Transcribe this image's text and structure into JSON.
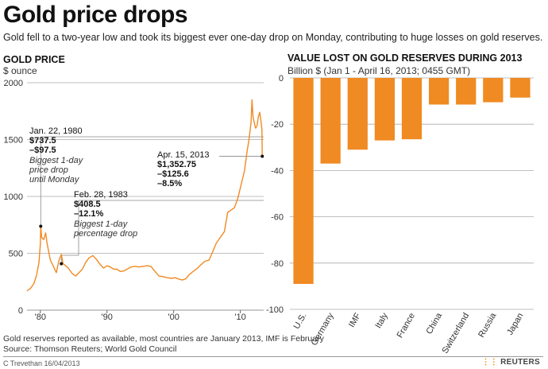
{
  "title": "Gold price drops",
  "subtitle": "Gold fell to a two-year low and took its biggest ever one-day drop on Monday, contributing to huge losses on gold reserves.",
  "footnote_1": "Gold reserves reported as available, most countries are January 2013, IMF is February",
  "footnote_2": "Source: Thomson Reuters; World Gold Council",
  "credit": "C Trevethan   16/04/2013",
  "brand": "REUTERS",
  "colors": {
    "series": "#f08a22",
    "grid": "#aaaaaa"
  },
  "chart_data": [
    {
      "type": "line",
      "title": "GOLD PRICE",
      "ylabel": "$ ounce",
      "ylim": [
        0,
        2000
      ],
      "yticks": [
        0,
        500,
        1000,
        1500,
        2000
      ],
      "xlim": [
        1978,
        2013.5
      ],
      "xticks": [
        1980,
        1990,
        2000,
        2010
      ],
      "xtick_labels": [
        "'80",
        "'90",
        "'00",
        "'10"
      ],
      "grid": "horizontal",
      "series": [
        {
          "x": [
            1978.0,
            1978.5,
            1979.0,
            1979.4,
            1979.8,
            1980.0,
            1980.06,
            1980.2,
            1980.5,
            1980.8,
            1981.0,
            1981.5,
            1982.0,
            1982.4,
            1982.8,
            1983.15,
            1983.4,
            1983.8,
            1984.2,
            1984.8,
            1985.3,
            1985.8,
            1986.3,
            1986.8,
            1987.3,
            1987.9,
            1988.5,
            1989.0,
            1989.5,
            1990.0,
            1990.5,
            1991.0,
            1991.5,
            1992.0,
            1992.5,
            1993.0,
            1993.6,
            1994.2,
            1994.8,
            1995.4,
            1996.0,
            1996.6,
            1997.2,
            1997.8,
            1998.4,
            1999.0,
            1999.7,
            2000.2,
            2000.8,
            2001.3,
            2001.8,
            2002.3,
            2002.9,
            2003.5,
            2004.1,
            2004.7,
            2005.3,
            2005.9,
            2006.4,
            2007.0,
            2007.6,
            2008.1,
            2008.6,
            2009.1,
            2009.6,
            2010.1,
            2010.6,
            2011.0,
            2011.3,
            2011.6,
            2011.75,
            2011.9,
            2012.1,
            2012.3,
            2012.5,
            2012.7,
            2012.9,
            2013.1,
            2013.24,
            2013.29
          ],
          "y": [
            170,
            190,
            230,
            300,
            420,
            580,
            737.5,
            640,
            620,
            680,
            590,
            440,
            380,
            330,
            440,
            490,
            408.5,
            390,
            370,
            320,
            300,
            330,
            360,
            420,
            460,
            480,
            440,
            400,
            370,
            390,
            380,
            360,
            360,
            340,
            345,
            360,
            380,
            385,
            380,
            385,
            390,
            385,
            340,
            300,
            295,
            285,
            280,
            285,
            272,
            265,
            275,
            310,
            340,
            365,
            400,
            430,
            440,
            520,
            590,
            640,
            690,
            860,
            880,
            900,
            980,
            1100,
            1220,
            1390,
            1500,
            1650,
            1850,
            1700,
            1650,
            1600,
            1620,
            1700,
            1740,
            1660,
            1590,
            1352.75
          ]
        }
      ],
      "annotations": [
        {
          "date": "Jan. 22, 1980",
          "value": "$737.5",
          "change": "–$97.5",
          "note": [
            "Biggest 1-day",
            "price drop",
            "until Monday"
          ]
        },
        {
          "date": "Feb. 28, 1983",
          "value": "$408.5",
          "change": "–12.1%",
          "note": [
            "Biggest 1-day",
            "percentage drop"
          ]
        },
        {
          "date": "Apr. 15, 2013",
          "value": "$1,352.75",
          "change": "–$125.6",
          "change2": "–8.5%"
        }
      ]
    },
    {
      "type": "bar",
      "title": "VALUE LOST ON GOLD RESERVES DURING 2013",
      "ylabel": "Billion $  (Jan 1 - April 16, 2013; 0455 GMT)",
      "categories": [
        "U.S.",
        "Germany",
        "IMF",
        "Italy",
        "France",
        "China",
        "Switzerland",
        "Russia",
        "Japan"
      ],
      "values": [
        -89,
        -37,
        -31,
        -27,
        -26.5,
        -11.5,
        -11.5,
        -10.5,
        -8.5
      ],
      "ylim": [
        -100,
        0
      ],
      "yticks": [
        0,
        -20,
        -40,
        -60,
        -80,
        -100
      ],
      "grid": "horizontal"
    }
  ]
}
